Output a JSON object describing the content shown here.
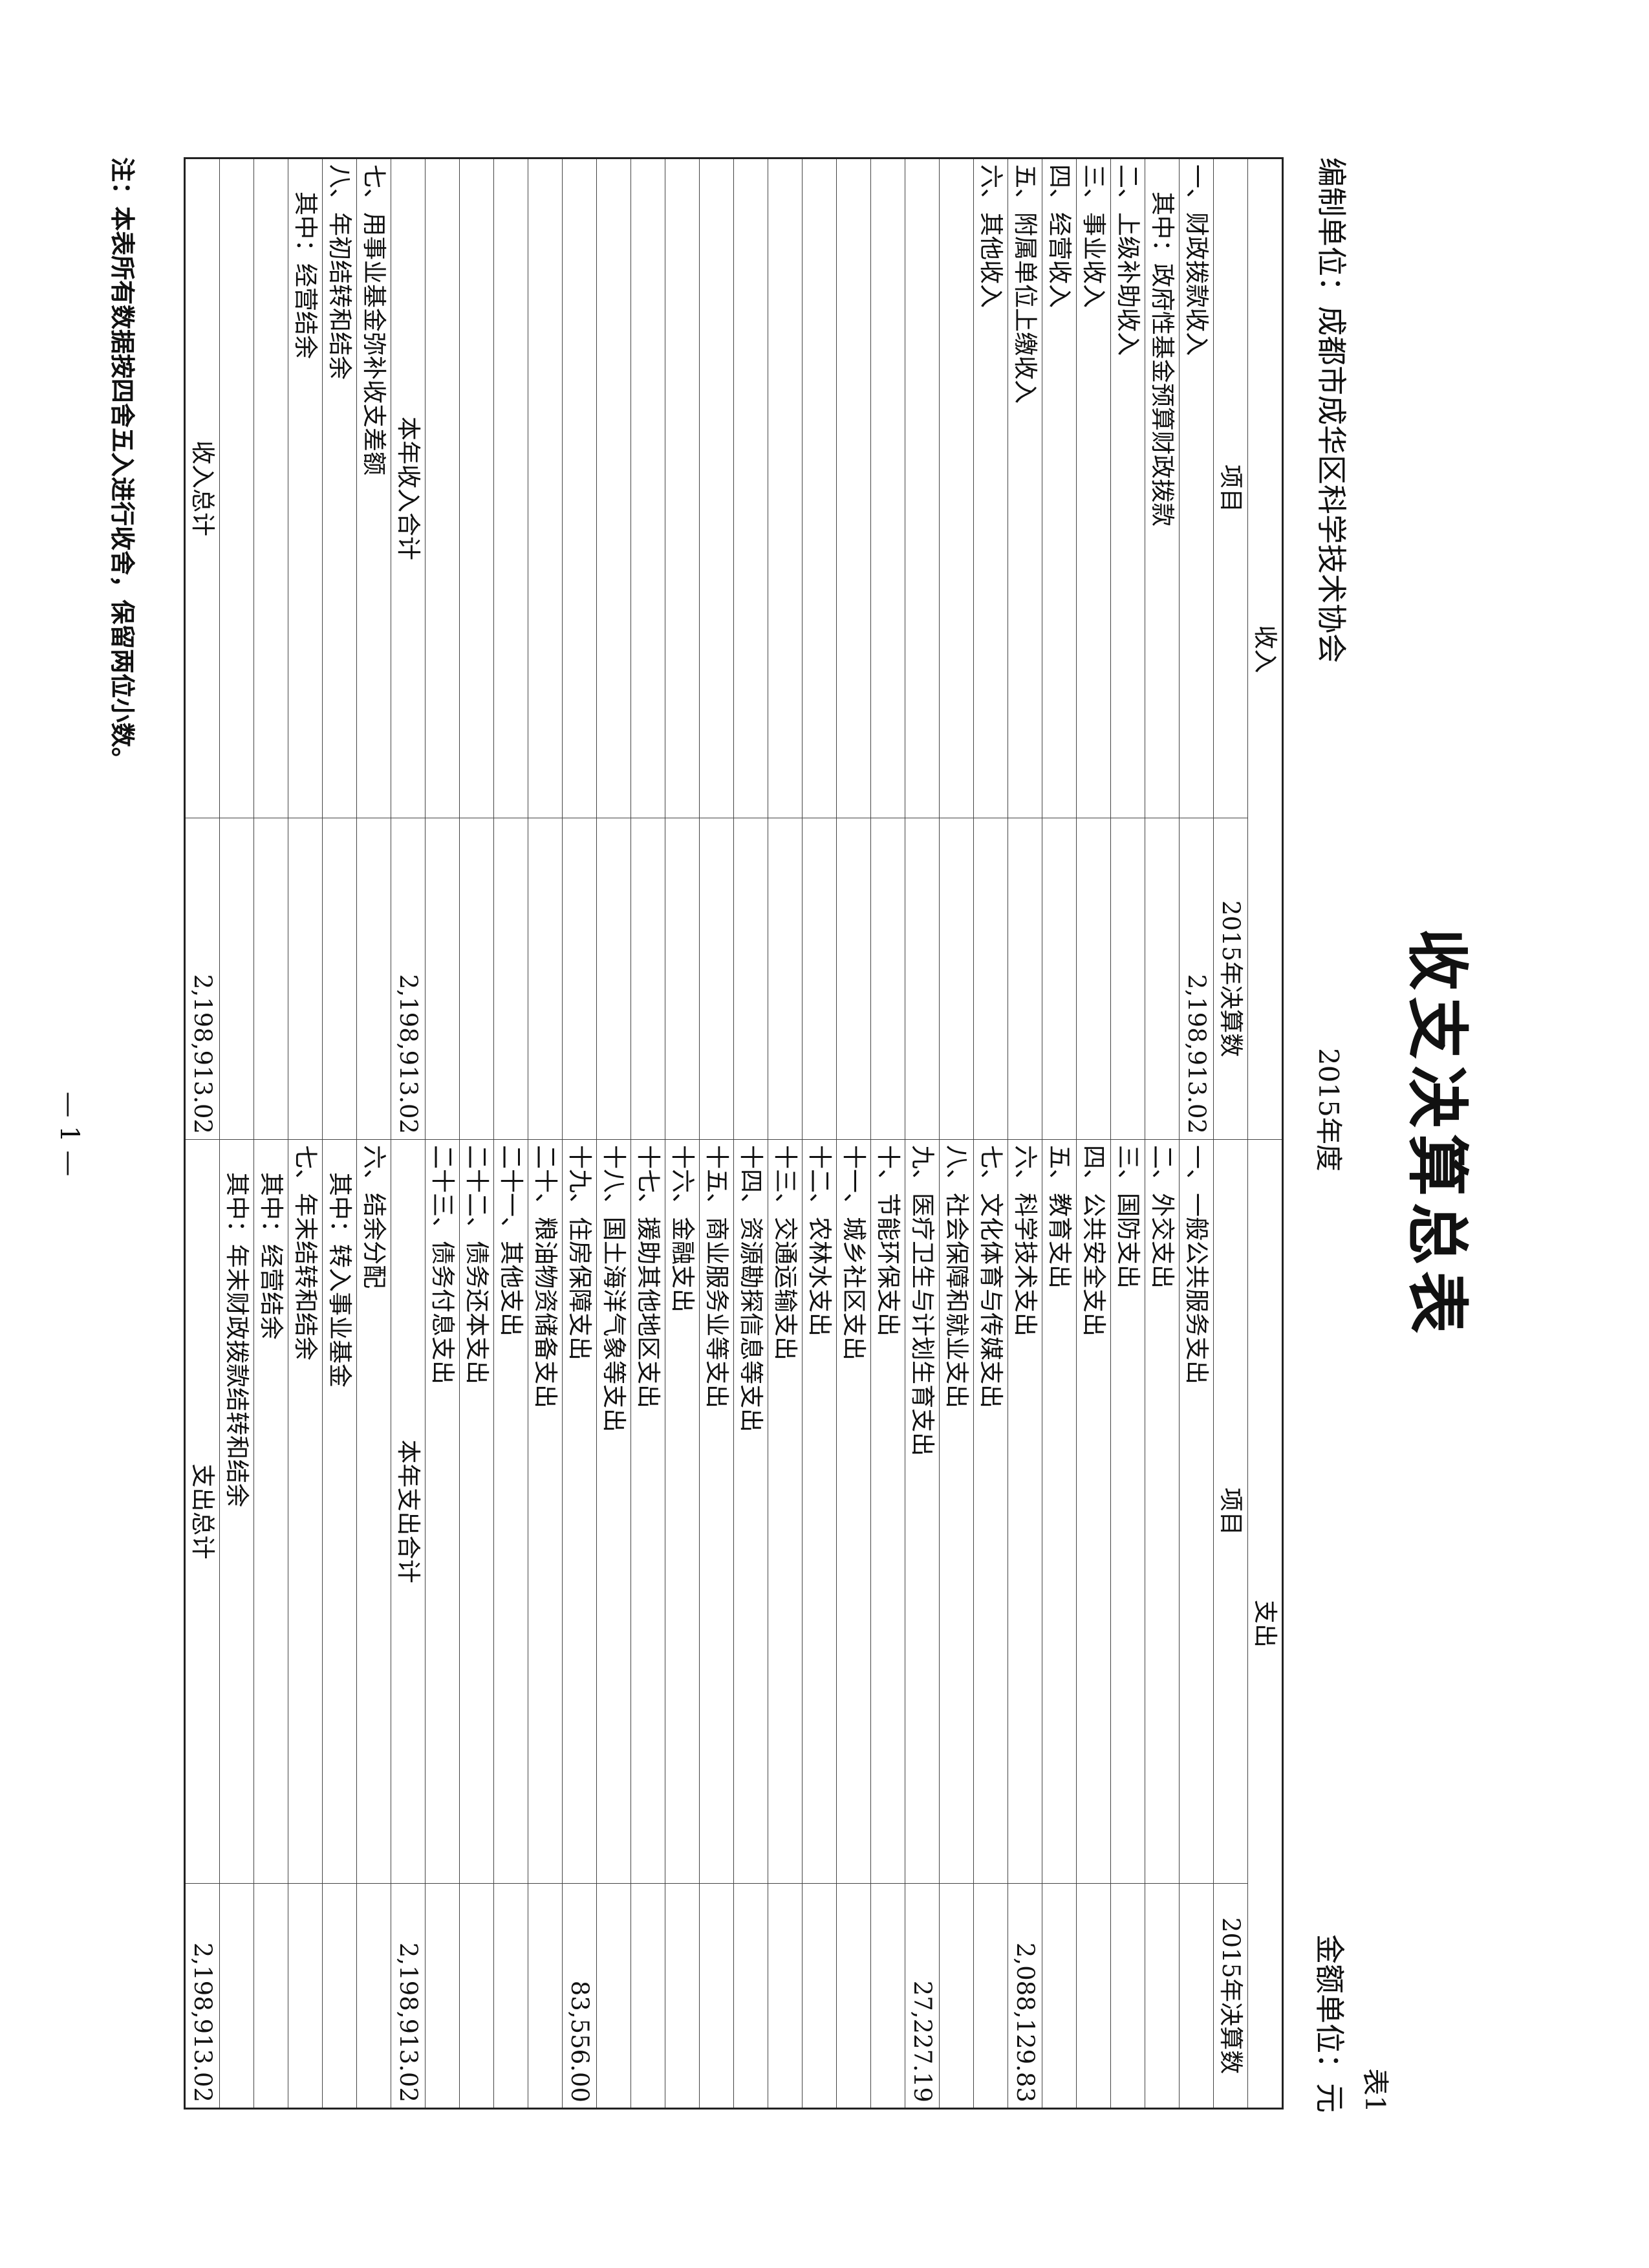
{
  "header": {
    "title": "收支决算总表",
    "year": "2015年度",
    "table_no": "表1",
    "org": "编制单位：成都市成华区科学技术协会",
    "unit": "金额单位：元"
  },
  "table": {
    "headers": [
      "收入",
      "支出"
    ],
    "subheaders": [
      "项目",
      "2015年决算数",
      "项目",
      "2015年决算数"
    ],
    "rows": [
      [
        "一、财政拨款收入",
        "2,198,913.02",
        "一、一般公共服务支出",
        null
      ],
      [
        "其中：政府性基金预算财政拨款",
        null,
        "二、外交支出",
        null
      ],
      [
        "二、上级补助收入",
        null,
        "三、国防支出",
        null
      ],
      [
        "三、事业收入",
        null,
        "四、公共安全支出",
        null
      ],
      [
        "四、经营收入",
        null,
        "五、教育支出",
        null
      ],
      [
        "五、附属单位上缴收入",
        null,
        "六、科学技术支出",
        "2,088,129.83"
      ],
      [
        "六、其他收入",
        null,
        "七、文化体育与传媒支出",
        null
      ],
      [
        null,
        null,
        "八、社会保障和就业支出",
        null
      ],
      [
        null,
        null,
        "九、医疗卫生与计划生育支出",
        "27,227.19"
      ],
      [
        null,
        null,
        "十、节能环保支出",
        null
      ],
      [
        null,
        null,
        "十一、城乡社区支出",
        null
      ],
      [
        null,
        null,
        "十二、农林水支出",
        null
      ],
      [
        null,
        null,
        "十三、交通运输支出",
        null
      ],
      [
        null,
        null,
        "十四、资源勘探信息等支出",
        null
      ],
      [
        null,
        null,
        "十五、商业服务业等支出",
        null
      ],
      [
        null,
        null,
        "十六、金融支出",
        null
      ],
      [
        null,
        null,
        "十七、援助其他地区支出",
        null
      ],
      [
        null,
        null,
        "十八、国土海洋气象等支出",
        null
      ],
      [
        null,
        null,
        "十九、住房保障支出",
        "83,556.00"
      ],
      [
        null,
        null,
        "二十、粮油物资储备支出",
        null
      ],
      [
        null,
        null,
        "二十一、其他支出",
        null
      ],
      [
        null,
        null,
        "二十二、债务还本支出",
        null
      ],
      [
        null,
        null,
        "二十三、债务付息支出",
        null
      ],
      [
        "本年收入合计",
        "2,198,913.02",
        "本年支出合计",
        "2,198,913.02"
      ],
      [
        "七、用事业基金弥补收支差额",
        null,
        "六、结余分配",
        null
      ],
      [
        "八、年初结转和结余",
        null,
        "其中：转入事业基金",
        null
      ],
      [
        "其中：经营结余",
        null,
        "七、年末结转和结余",
        null
      ],
      [
        null,
        null,
        "其中：经营结余",
        null
      ],
      [
        null,
        null,
        "其中：年末财政拨款结转和结余",
        null
      ],
      [
        "收入总计",
        "2,198,913.02",
        "支出总计",
        "2,198,913.02"
      ]
    ]
  },
  "footer": {
    "note": "注：本表所有数据按四舍五入进行收舍，保留两位小数。",
    "page": "— 1 —"
  }
}
